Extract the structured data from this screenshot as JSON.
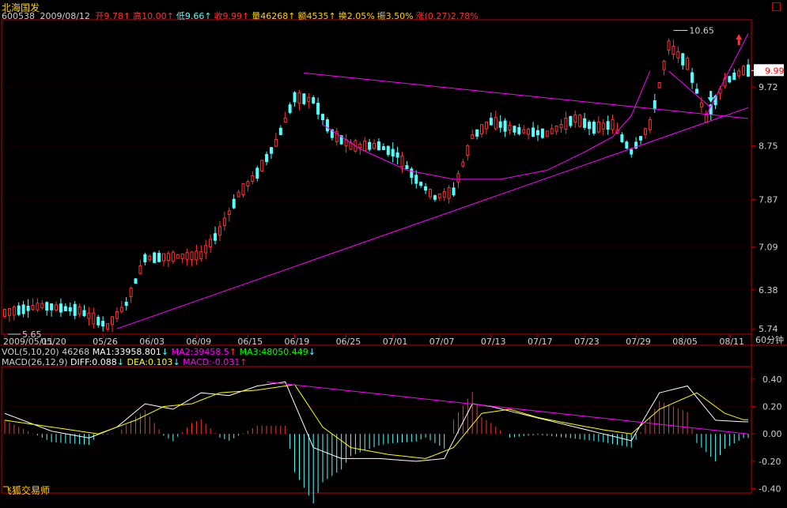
{
  "header": {
    "name": "北海国发",
    "code": "600538",
    "date": "2009/08/12",
    "stats": [
      {
        "label": "开",
        "value": "9.78",
        "arrow": "↑",
        "color": "#ff3030"
      },
      {
        "label": "高",
        "value": "10.00",
        "arrow": "↑",
        "color": "#ff3030"
      },
      {
        "label": "低",
        "value": "9.66",
        "arrow": "↑",
        "color": "#54ffff"
      },
      {
        "label": "收",
        "value": "9.99",
        "arrow": "↑",
        "color": "#ff3030"
      },
      {
        "label": "量",
        "value": "46268",
        "arrow": "↑",
        "color": "#ffd200"
      },
      {
        "label": "额",
        "value": "4535",
        "arrow": "↑",
        "color": "#ffd200"
      },
      {
        "label": "换",
        "value": "2.05%",
        "arrow": "",
        "color": "#ffd200"
      },
      {
        "label": "振",
        "value": "3.50%",
        "arrow": "",
        "color": "#ffd200"
      },
      {
        "label": "涨",
        "value": "(0.27)2.78%",
        "arrow": "",
        "color": "#ff3030"
      }
    ]
  },
  "vol_line": {
    "label": "VOL(5,10,20)",
    "value": "46268",
    "ma1": "MA1:33958.801",
    "ma1_arrow": "↓",
    "ma2": "MA2:39458.5",
    "ma2_arrow": "↑",
    "ma3": "MA3:48050.449",
    "ma3_arrow": "↓"
  },
  "macd_line": {
    "label": "MACD(26,12,9)",
    "diff": "DIFF:0.088",
    "diff_arrow": "↓",
    "dea": "DEA:0.103",
    "dea_arrow": "↓",
    "macd": "MACD:-0.031",
    "macd_arrow": "↑"
  },
  "period_label": "60分钟",
  "footer_label": "飞狐交易师",
  "colors": {
    "up": "#ff3232",
    "down": "#54ffff",
    "axis": "#c00000",
    "trend": "#ff00ff",
    "diff": "#ffffff",
    "dea": "#ffff00",
    "price_box_text": "#ff0000"
  },
  "chart_data": [
    {
      "type": "candlestick",
      "x_labels": [
        "2009/05/11",
        "05/20",
        "05/26",
        "06/03",
        "06/09",
        "06/15",
        "06/19",
        "06/25",
        "07/01",
        "07/07",
        "07/13",
        "07/17",
        "07/23",
        "07/29",
        "08/05",
        "08/11"
      ],
      "y_ticks": [
        5.74,
        6.38,
        7.09,
        7.87,
        8.75,
        9.72
      ],
      "ylim": [
        5.65,
        10.8
      ],
      "current_price": "9.99",
      "annotations": [
        {
          "text": "5.65",
          "kind": "low"
        },
        {
          "text": "10.65",
          "kind": "high"
        }
      ],
      "n_bars": 160,
      "price_path": [
        [
          0,
          6.0
        ],
        [
          8,
          6.12
        ],
        [
          16,
          6.04
        ],
        [
          22,
          5.78
        ],
        [
          26,
          6.15
        ],
        [
          30,
          6.9
        ],
        [
          42,
          6.95
        ],
        [
          46,
          7.35
        ],
        [
          50,
          7.95
        ],
        [
          54,
          8.3
        ],
        [
          58,
          8.8
        ],
        [
          62,
          9.55
        ],
        [
          66,
          9.5
        ],
        [
          70,
          8.95
        ],
        [
          74,
          8.75
        ],
        [
          80,
          8.75
        ],
        [
          84,
          8.6
        ],
        [
          88,
          8.2
        ],
        [
          92,
          7.9
        ],
        [
          96,
          8.0
        ],
        [
          100,
          8.9
        ],
        [
          104,
          9.15
        ],
        [
          110,
          9.0
        ],
        [
          116,
          8.95
        ],
        [
          122,
          9.2
        ],
        [
          126,
          9.05
        ],
        [
          130,
          9.1
        ],
        [
          134,
          8.65
        ],
        [
          138,
          9.1
        ],
        [
          142,
          10.4
        ],
        [
          146,
          10.1
        ],
        [
          150,
          9.2
        ],
        [
          154,
          9.8
        ],
        [
          158,
          9.99
        ]
      ]
    },
    {
      "type": "bar_line",
      "name": "MACD",
      "yticks": [
        0.4,
        0.2,
        0.0,
        -0.2,
        -0.4
      ],
      "ylim": [
        -0.42,
        0.48
      ],
      "diff_path": [
        [
          0,
          0.15
        ],
        [
          10,
          0.02
        ],
        [
          18,
          -0.03
        ],
        [
          24,
          0.05
        ],
        [
          30,
          0.22
        ],
        [
          36,
          0.18
        ],
        [
          42,
          0.3
        ],
        [
          48,
          0.28
        ],
        [
          54,
          0.35
        ],
        [
          60,
          0.38
        ],
        [
          66,
          -0.1
        ],
        [
          72,
          -0.18
        ],
        [
          80,
          -0.18
        ],
        [
          88,
          -0.2
        ],
        [
          94,
          -0.18
        ],
        [
          100,
          0.22
        ],
        [
          104,
          0.2
        ],
        [
          110,
          0.15
        ],
        [
          116,
          0.1
        ],
        [
          122,
          0.05
        ],
        [
          128,
          0.0
        ],
        [
          134,
          -0.05
        ],
        [
          140,
          0.3
        ],
        [
          146,
          0.35
        ],
        [
          152,
          0.1
        ],
        [
          158,
          0.088
        ]
      ],
      "dea_path": [
        [
          0,
          0.1
        ],
        [
          12,
          0.04
        ],
        [
          20,
          0.0
        ],
        [
          28,
          0.1
        ],
        [
          34,
          0.2
        ],
        [
          40,
          0.22
        ],
        [
          46,
          0.3
        ],
        [
          54,
          0.32
        ],
        [
          62,
          0.36
        ],
        [
          68,
          0.05
        ],
        [
          74,
          -0.1
        ],
        [
          82,
          -0.15
        ],
        [
          90,
          -0.18
        ],
        [
          96,
          -0.1
        ],
        [
          102,
          0.15
        ],
        [
          108,
          0.18
        ],
        [
          114,
          0.12
        ],
        [
          120,
          0.08
        ],
        [
          128,
          0.03
        ],
        [
          134,
          0.0
        ],
        [
          140,
          0.18
        ],
        [
          148,
          0.3
        ],
        [
          154,
          0.15
        ],
        [
          158,
          0.103
        ]
      ]
    }
  ]
}
